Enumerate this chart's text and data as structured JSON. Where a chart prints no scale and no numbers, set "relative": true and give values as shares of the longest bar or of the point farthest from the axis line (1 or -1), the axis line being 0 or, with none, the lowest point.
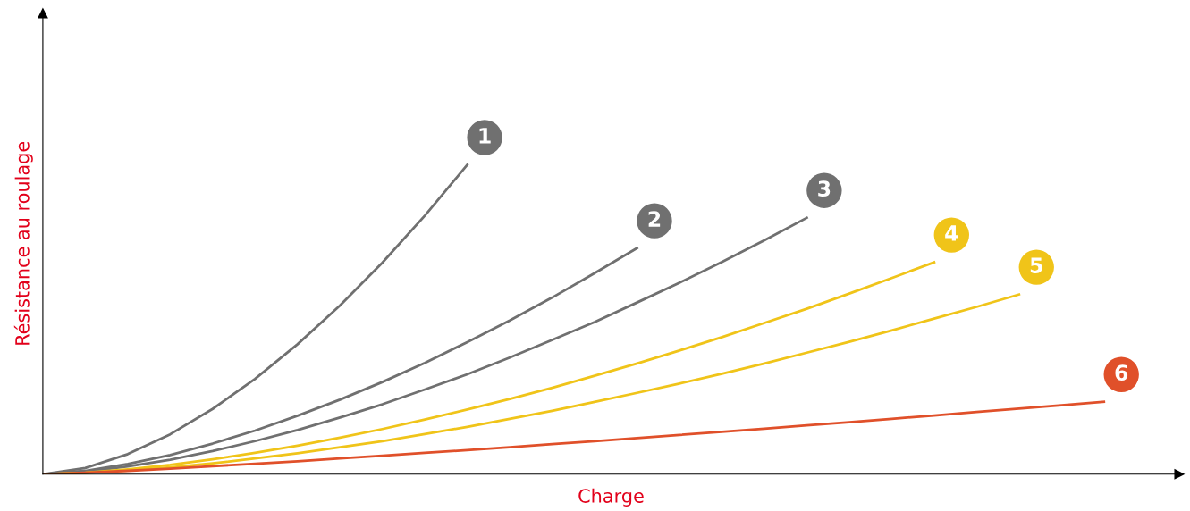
{
  "chart_data": {
    "type": "line",
    "relative": true,
    "xlabel": "Charge",
    "ylabel": "Résistance au roulage",
    "marker": "none",
    "line_style": "solid",
    "categories": [
      null,
      null,
      null,
      null,
      null,
      null,
      null,
      null,
      null,
      null,
      null,
      null,
      null,
      null,
      null,
      null,
      null,
      null,
      null,
      null,
      null,
      null,
      null,
      null,
      null,
      null
    ],
    "series": [
      {
        "name": "1",
        "color": "#707070",
        "values": [
          0,
          0.02,
          0.065,
          0.129,
          0.211,
          0.308,
          0.42,
          0.545,
          0.684,
          0.836,
          1,
          null,
          null,
          null,
          null,
          null,
          null,
          null,
          null,
          null,
          null,
          null,
          null,
          null,
          null,
          null
        ]
      },
      {
        "name": "2",
        "color": "#707070",
        "values": [
          0,
          0.011,
          0.033,
          0.062,
          0.099,
          0.141,
          0.189,
          0.241,
          0.298,
          0.36,
          0.427,
          0.497,
          0.571,
          0.65,
          0.731,
          null,
          null,
          null,
          null,
          null,
          null,
          null,
          null,
          null,
          null,
          null
        ]
      },
      {
        "name": "3",
        "color": "#707070",
        "values": [
          0,
          0.008,
          0.025,
          0.047,
          0.075,
          0.107,
          0.143,
          0.183,
          0.226,
          0.274,
          0.323,
          0.377,
          0.434,
          0.492,
          0.555,
          0.619,
          0.686,
          0.756,
          0.829,
          null,
          null,
          null,
          null,
          null,
          null,
          null
        ]
      },
      {
        "name": "4",
        "color": "#f0c419",
        "values": [
          0,
          0.005,
          0.016,
          0.03,
          0.048,
          0.069,
          0.092,
          0.118,
          0.146,
          0.177,
          0.209,
          0.243,
          0.279,
          0.318,
          0.358,
          0.4,
          0.443,
          0.489,
          0.535,
          0.584,
          0.634,
          0.685,
          null,
          null,
          null,
          null
        ]
      },
      {
        "name": "5",
        "color": "#f0c419",
        "values": [
          0,
          0.004,
          0.012,
          0.022,
          0.035,
          0.051,
          0.068,
          0.087,
          0.107,
          0.13,
          0.153,
          0.179,
          0.205,
          0.234,
          0.263,
          0.293,
          0.325,
          0.358,
          0.393,
          0.428,
          0.465,
          0.503,
          0.541,
          0.581,
          null,
          null
        ]
      },
      {
        "name": "6",
        "color": "#e0502a",
        "values": [
          0,
          0.005,
          0.011,
          0.018,
          0.026,
          0.034,
          0.042,
          0.051,
          0.06,
          0.069,
          0.078,
          0.087,
          0.097,
          0.107,
          0.117,
          0.127,
          0.137,
          0.147,
          0.158,
          0.168,
          0.179,
          0.19,
          0.201,
          0.212,
          0.223,
          0.234
        ]
      }
    ]
  }
}
